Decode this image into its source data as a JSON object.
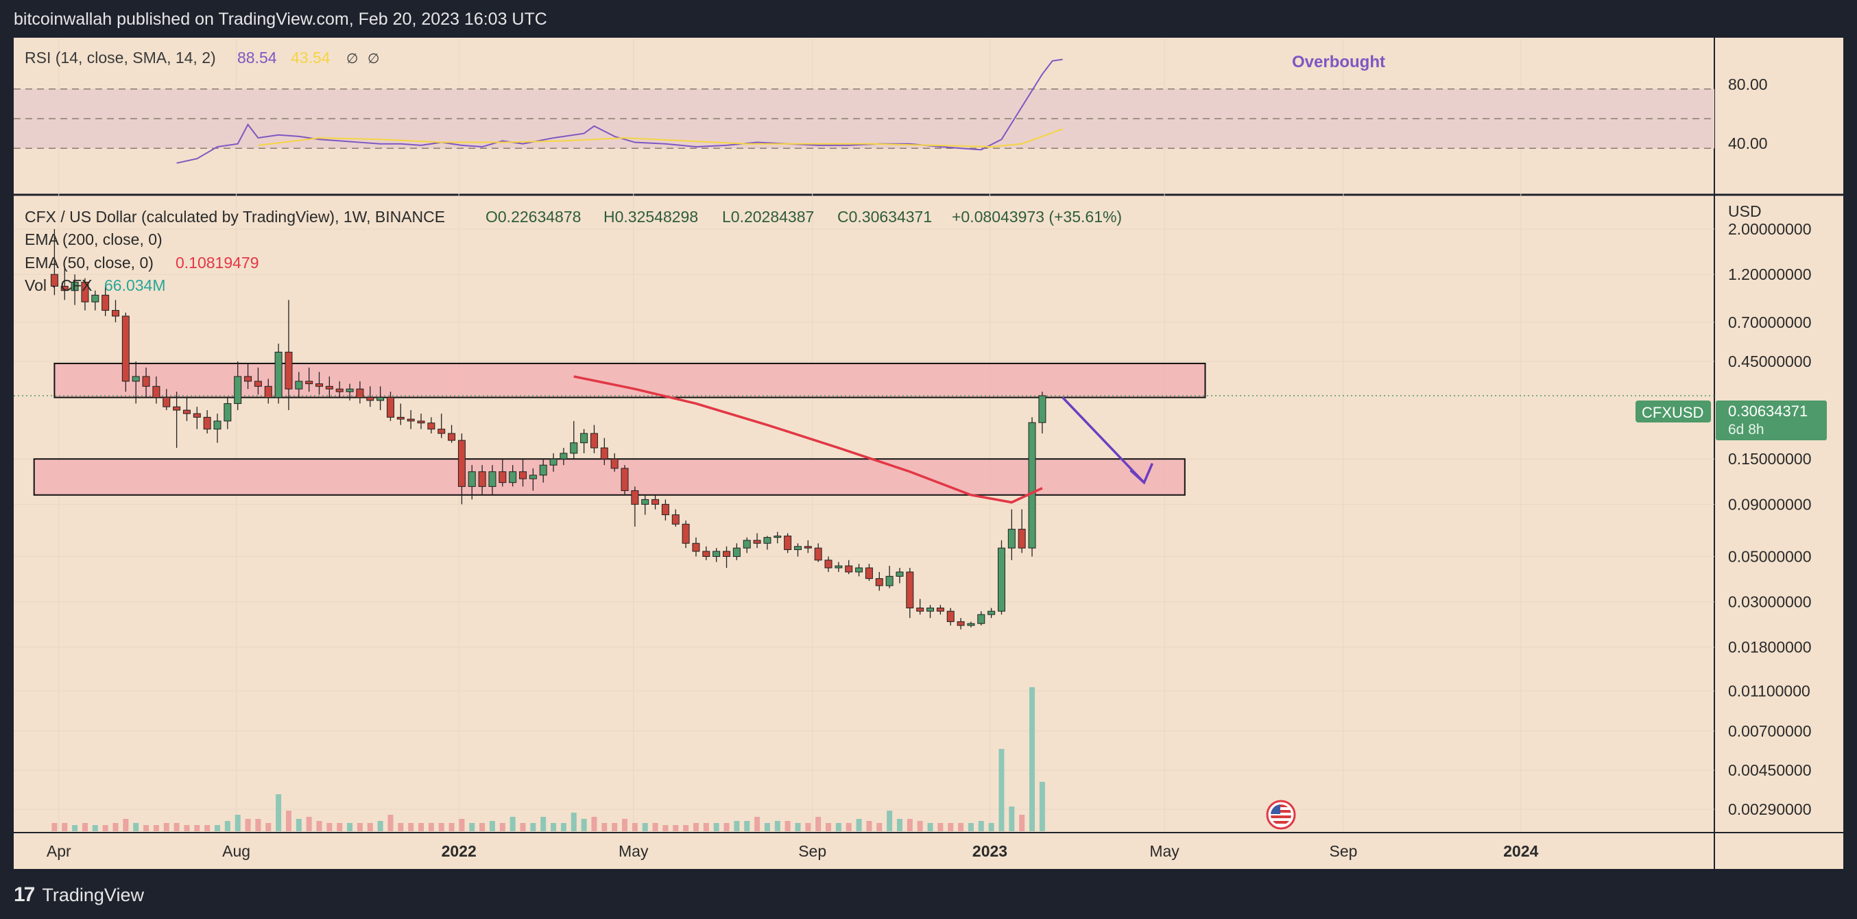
{
  "header": {
    "published": "bitcoinwallah published on TradingView.com, Feb 20, 2023 16:03 UTC"
  },
  "footer": {
    "brand": "TradingView",
    "logo": "tv-logo-icon"
  },
  "colors": {
    "bull": "#4e9a6a",
    "bear": "#c8463c",
    "ema50": "#e23745",
    "rsi": "#7e57c2",
    "rsi_ma": "#f5d442",
    "zone": "#f2b3b6",
    "bg": "#f3e1cd",
    "frame": "#1e222d"
  },
  "rsi_panel": {
    "legend": {
      "label": "RSI (14, close, SMA, 14, 2)",
      "rsi_value": "88.54",
      "ma_value": "43.54",
      "extra1": "∅",
      "extra2": "∅"
    },
    "scale_labels": [
      "80.00",
      "40.00"
    ],
    "annotation": "Overbought",
    "rsi_series": [
      [
        "2021-06-21",
        20
      ],
      [
        "2021-07-05",
        23
      ],
      [
        "2021-07-19",
        31
      ],
      [
        "2021-08-02",
        33
      ],
      [
        "2021-08-09",
        46
      ],
      [
        "2021-08-16",
        37
      ],
      [
        "2021-08-30",
        39
      ],
      [
        "2021-09-13",
        38
      ],
      [
        "2021-09-27",
        36
      ],
      [
        "2021-10-11",
        35
      ],
      [
        "2021-10-25",
        34
      ],
      [
        "2021-11-08",
        33
      ],
      [
        "2021-11-22",
        33
      ],
      [
        "2021-12-06",
        32
      ],
      [
        "2021-12-20",
        34
      ],
      [
        "2022-01-03",
        32
      ],
      [
        "2022-01-17",
        31
      ],
      [
        "2022-01-31",
        35
      ],
      [
        "2022-02-14",
        33
      ],
      [
        "2022-03-07",
        37
      ],
      [
        "2022-03-28",
        40
      ],
      [
        "2022-04-04",
        45
      ],
      [
        "2022-04-18",
        38
      ],
      [
        "2022-05-02",
        34
      ],
      [
        "2022-05-23",
        33
      ],
      [
        "2022-06-13",
        31
      ],
      [
        "2022-07-04",
        32
      ],
      [
        "2022-07-25",
        34
      ],
      [
        "2022-08-15",
        33
      ],
      [
        "2022-09-05",
        32
      ],
      [
        "2022-09-26",
        32
      ],
      [
        "2022-10-17",
        33
      ],
      [
        "2022-11-07",
        33
      ],
      [
        "2022-11-28",
        31
      ],
      [
        "2022-12-12",
        30
      ],
      [
        "2022-12-26",
        29
      ],
      [
        "2023-01-09",
        36
      ],
      [
        "2023-01-23",
        58
      ],
      [
        "2023-02-06",
        80
      ],
      [
        "2023-02-13",
        89
      ],
      [
        "2023-02-20",
        90
      ]
    ],
    "ma_series": [
      [
        "2021-08-16",
        32
      ],
      [
        "2021-09-27",
        37
      ],
      [
        "2021-11-08",
        36
      ],
      [
        "2021-12-20",
        34
      ],
      [
        "2022-01-31",
        34
      ],
      [
        "2022-03-14",
        35
      ],
      [
        "2022-04-25",
        37
      ],
      [
        "2022-06-06",
        35
      ],
      [
        "2022-07-18",
        33
      ],
      [
        "2022-08-29",
        33
      ],
      [
        "2022-10-10",
        33
      ],
      [
        "2022-11-21",
        32
      ],
      [
        "2023-01-02",
        31
      ],
      [
        "2023-01-23",
        33
      ],
      [
        "2023-02-06",
        38
      ],
      [
        "2023-02-20",
        43
      ]
    ]
  },
  "price_panel": {
    "legend": {
      "symbol": "CFX / US Dollar (calculated by TradingView), 1W, BINANCE",
      "open": "O0.22634878",
      "high": "H0.32548298",
      "low": "L0.20284387",
      "close": "C0.30634371",
      "change": "+0.08043973 (+35.61%)",
      "ema200": "EMA (200, close, 0)",
      "ema50_label": "EMA (50, close, 0)",
      "ema50_value": "0.10819479",
      "vol_label": "Vol · CFX",
      "vol_value": "66.034M"
    },
    "currency": "USD",
    "last_price": {
      "symbol": "CFXUSD",
      "price": "0.30634371",
      "countdown": "6d 8h"
    },
    "flag_icon": "us-flag-icon"
  },
  "chart_data": {
    "type": "candlestick",
    "title": "CFX / US Dollar (calculated by TradingView), 1W, BINANCE",
    "y_scale": "log",
    "ylabel": "USD",
    "ylim": [
      0.0023,
      2.6
    ],
    "xlim": [
      "2021-03-01",
      "2024-05-13"
    ],
    "y_ticks": [
      2.0,
      1.2,
      0.7,
      0.45,
      0.15,
      0.09,
      0.05,
      0.03,
      0.018,
      0.011,
      0.007,
      0.0045,
      0.0029
    ],
    "y_tick_labels": [
      "2.00000000",
      "1.20000000",
      "0.70000000",
      "0.45000000",
      "0.15000000",
      "0.09000000",
      "0.05000000",
      "0.03000000",
      "0.01800000",
      "0.01100000",
      "0.00700000",
      "0.00450000",
      "0.00290000"
    ],
    "x_ticks": [
      {
        "date": "2021-04-01",
        "label": "Apr",
        "bold": false
      },
      {
        "date": "2021-08-01",
        "label": "Aug",
        "bold": false
      },
      {
        "date": "2022-01-01",
        "label": "2022",
        "bold": true
      },
      {
        "date": "2022-05-01",
        "label": "May",
        "bold": false
      },
      {
        "date": "2022-09-01",
        "label": "Sep",
        "bold": false
      },
      {
        "date": "2023-01-01",
        "label": "2023",
        "bold": true
      },
      {
        "date": "2023-05-01",
        "label": "May",
        "bold": false
      },
      {
        "date": "2023-09-01",
        "label": "Sep",
        "bold": false
      },
      {
        "date": "2024-01-01",
        "label": "2024",
        "bold": true
      }
    ],
    "series_columns": [
      "week",
      "open",
      "high",
      "low",
      "close",
      "volume"
    ],
    "candles": [
      [
        "2021-03-29",
        1.2,
        2.0,
        0.95,
        1.05,
        2
      ],
      [
        "2021-04-05",
        1.05,
        1.3,
        0.9,
        1.0,
        2
      ],
      [
        "2021-04-12",
        1.0,
        1.2,
        0.85,
        1.1,
        1.5
      ],
      [
        "2021-04-19",
        1.1,
        1.15,
        0.8,
        0.88,
        2
      ],
      [
        "2021-04-26",
        0.88,
        1.0,
        0.8,
        0.95,
        1.5
      ],
      [
        "2021-05-03",
        0.95,
        1.05,
        0.75,
        0.8,
        1.5
      ],
      [
        "2021-05-10",
        0.8,
        0.9,
        0.7,
        0.75,
        2
      ],
      [
        "2021-05-17",
        0.75,
        0.78,
        0.32,
        0.36,
        3
      ],
      [
        "2021-05-24",
        0.36,
        0.45,
        0.28,
        0.38,
        2
      ],
      [
        "2021-05-31",
        0.38,
        0.42,
        0.3,
        0.34,
        1.5
      ],
      [
        "2021-06-07",
        0.34,
        0.38,
        0.28,
        0.3,
        1.5
      ],
      [
        "2021-06-14",
        0.3,
        0.33,
        0.26,
        0.27,
        2
      ],
      [
        "2021-06-21",
        0.27,
        0.32,
        0.17,
        0.26,
        2
      ],
      [
        "2021-06-28",
        0.26,
        0.3,
        0.23,
        0.25,
        1.5
      ],
      [
        "2021-07-05",
        0.25,
        0.27,
        0.21,
        0.24,
        1.5
      ],
      [
        "2021-07-12",
        0.24,
        0.26,
        0.2,
        0.21,
        1.5
      ],
      [
        "2021-07-19",
        0.21,
        0.25,
        0.18,
        0.23,
        1.5
      ],
      [
        "2021-07-26",
        0.23,
        0.3,
        0.21,
        0.28,
        2.5
      ],
      [
        "2021-08-02",
        0.28,
        0.45,
        0.26,
        0.38,
        4
      ],
      [
        "2021-08-09",
        0.38,
        0.44,
        0.33,
        0.36,
        3
      ],
      [
        "2021-08-16",
        0.36,
        0.42,
        0.31,
        0.34,
        3
      ],
      [
        "2021-08-23",
        0.34,
        0.37,
        0.28,
        0.3,
        2
      ],
      [
        "2021-08-30",
        0.3,
        0.55,
        0.28,
        0.5,
        9
      ],
      [
        "2021-09-06",
        0.5,
        0.9,
        0.26,
        0.33,
        5
      ],
      [
        "2021-09-13",
        0.33,
        0.4,
        0.3,
        0.36,
        3
      ],
      [
        "2021-09-20",
        0.36,
        0.42,
        0.32,
        0.35,
        3.5
      ],
      [
        "2021-09-27",
        0.35,
        0.4,
        0.31,
        0.34,
        2.5
      ],
      [
        "2021-10-04",
        0.34,
        0.38,
        0.3,
        0.33,
        2
      ],
      [
        "2021-10-11",
        0.33,
        0.36,
        0.3,
        0.32,
        2
      ],
      [
        "2021-10-18",
        0.32,
        0.35,
        0.29,
        0.33,
        2
      ],
      [
        "2021-10-25",
        0.33,
        0.36,
        0.28,
        0.3,
        2
      ],
      [
        "2021-11-01",
        0.3,
        0.34,
        0.27,
        0.29,
        2
      ],
      [
        "2021-11-08",
        0.29,
        0.34,
        0.26,
        0.3,
        2.5
      ],
      [
        "2021-11-15",
        0.3,
        0.32,
        0.23,
        0.24,
        4
      ],
      [
        "2021-11-22",
        0.24,
        0.28,
        0.22,
        0.235,
        2
      ],
      [
        "2021-11-29",
        0.235,
        0.26,
        0.21,
        0.23,
        2
      ],
      [
        "2021-12-06",
        0.23,
        0.25,
        0.21,
        0.225,
        2
      ],
      [
        "2021-12-13",
        0.225,
        0.24,
        0.2,
        0.21,
        2
      ],
      [
        "2021-12-20",
        0.21,
        0.25,
        0.19,
        0.2,
        2
      ],
      [
        "2021-12-27",
        0.2,
        0.22,
        0.18,
        0.185,
        2
      ],
      [
        "2022-01-03",
        0.185,
        0.2,
        0.09,
        0.11,
        3
      ],
      [
        "2022-01-10",
        0.11,
        0.14,
        0.095,
        0.13,
        2
      ],
      [
        "2022-01-17",
        0.13,
        0.14,
        0.1,
        0.11,
        2
      ],
      [
        "2022-01-24",
        0.11,
        0.14,
        0.1,
        0.13,
        2.5
      ],
      [
        "2022-01-31",
        0.13,
        0.15,
        0.11,
        0.115,
        2
      ],
      [
        "2022-02-07",
        0.115,
        0.14,
        0.11,
        0.13,
        3.5
      ],
      [
        "2022-02-14",
        0.13,
        0.15,
        0.11,
        0.12,
        2
      ],
      [
        "2022-02-21",
        0.12,
        0.135,
        0.105,
        0.125,
        2
      ],
      [
        "2022-02-28",
        0.125,
        0.15,
        0.115,
        0.14,
        3.5
      ],
      [
        "2022-03-07",
        0.14,
        0.16,
        0.13,
        0.15,
        2
      ],
      [
        "2022-03-14",
        0.15,
        0.17,
        0.14,
        0.16,
        2
      ],
      [
        "2022-03-21",
        0.16,
        0.23,
        0.15,
        0.18,
        4.5
      ],
      [
        "2022-03-28",
        0.18,
        0.21,
        0.16,
        0.2,
        3
      ],
      [
        "2022-04-04",
        0.2,
        0.22,
        0.16,
        0.17,
        3.5
      ],
      [
        "2022-04-11",
        0.17,
        0.19,
        0.14,
        0.15,
        2
      ],
      [
        "2022-04-18",
        0.15,
        0.16,
        0.13,
        0.135,
        2
      ],
      [
        "2022-04-25",
        0.135,
        0.14,
        0.1,
        0.105,
        3
      ],
      [
        "2022-05-02",
        0.105,
        0.11,
        0.07,
        0.09,
        2
      ],
      [
        "2022-05-09",
        0.09,
        0.1,
        0.08,
        0.095,
        2
      ],
      [
        "2022-05-16",
        0.095,
        0.1,
        0.085,
        0.09,
        2
      ],
      [
        "2022-05-23",
        0.09,
        0.095,
        0.075,
        0.08,
        1.5
      ],
      [
        "2022-05-30",
        0.08,
        0.085,
        0.07,
        0.072,
        1.5
      ],
      [
        "2022-06-06",
        0.072,
        0.075,
        0.055,
        0.058,
        1.5
      ],
      [
        "2022-06-13",
        0.058,
        0.062,
        0.05,
        0.053,
        2
      ],
      [
        "2022-06-20",
        0.053,
        0.056,
        0.048,
        0.05,
        2
      ],
      [
        "2022-06-27",
        0.05,
        0.055,
        0.047,
        0.053,
        2
      ],
      [
        "2022-07-04",
        0.053,
        0.056,
        0.044,
        0.05,
        2
      ],
      [
        "2022-07-11",
        0.05,
        0.058,
        0.048,
        0.055,
        2.5
      ],
      [
        "2022-07-18",
        0.055,
        0.062,
        0.052,
        0.06,
        2.5
      ],
      [
        "2022-07-25",
        0.06,
        0.065,
        0.055,
        0.058,
        3.5
      ],
      [
        "2022-08-01",
        0.058,
        0.063,
        0.054,
        0.062,
        2
      ],
      [
        "2022-08-08",
        0.062,
        0.066,
        0.058,
        0.063,
        2.5
      ],
      [
        "2022-08-15",
        0.063,
        0.065,
        0.052,
        0.054,
        2.5
      ],
      [
        "2022-08-22",
        0.054,
        0.058,
        0.05,
        0.056,
        2
      ],
      [
        "2022-08-29",
        0.056,
        0.06,
        0.052,
        0.055,
        2
      ],
      [
        "2022-09-05",
        0.055,
        0.058,
        0.047,
        0.048,
        3.5
      ],
      [
        "2022-09-12",
        0.048,
        0.05,
        0.042,
        0.044,
        2
      ],
      [
        "2022-09-19",
        0.044,
        0.047,
        0.042,
        0.045,
        2
      ],
      [
        "2022-09-26",
        0.045,
        0.048,
        0.041,
        0.042,
        2
      ],
      [
        "2022-10-03",
        0.042,
        0.046,
        0.04,
        0.044,
        3
      ],
      [
        "2022-10-10",
        0.044,
        0.046,
        0.038,
        0.039,
        2.5
      ],
      [
        "2022-10-17",
        0.039,
        0.042,
        0.034,
        0.036,
        2
      ],
      [
        "2022-10-24",
        0.036,
        0.045,
        0.035,
        0.04,
        5
      ],
      [
        "2022-10-31",
        0.04,
        0.044,
        0.037,
        0.042,
        3
      ],
      [
        "2022-11-07",
        0.042,
        0.044,
        0.025,
        0.028,
        3
      ],
      [
        "2022-11-14",
        0.028,
        0.031,
        0.026,
        0.027,
        2.5
      ],
      [
        "2022-11-21",
        0.027,
        0.029,
        0.025,
        0.028,
        2
      ],
      [
        "2022-11-28",
        0.028,
        0.029,
        0.026,
        0.027,
        2
      ],
      [
        "2022-12-05",
        0.027,
        0.028,
        0.023,
        0.024,
        2
      ],
      [
        "2022-12-12",
        0.024,
        0.025,
        0.022,
        0.023,
        2
      ],
      [
        "2022-12-19",
        0.023,
        0.024,
        0.0225,
        0.0235,
        2
      ],
      [
        "2022-12-26",
        0.0235,
        0.027,
        0.023,
        0.026,
        2.5
      ],
      [
        "2023-01-02",
        0.026,
        0.028,
        0.025,
        0.027,
        2
      ],
      [
        "2023-01-09",
        0.027,
        0.06,
        0.026,
        0.055,
        20
      ],
      [
        "2023-01-16",
        0.055,
        0.085,
        0.048,
        0.068,
        6
      ],
      [
        "2023-01-23",
        0.068,
        0.085,
        0.052,
        0.055,
        4
      ],
      [
        "2023-01-30",
        0.055,
        0.24,
        0.05,
        0.226,
        35
      ],
      [
        "2023-02-06",
        0.226,
        0.32,
        0.2,
        0.306,
        12
      ]
    ],
    "ema50": [
      [
        "2022-03-21",
        0.38
      ],
      [
        "2022-05-02",
        0.33
      ],
      [
        "2022-06-13",
        0.28
      ],
      [
        "2022-08-01",
        0.22
      ],
      [
        "2022-09-19",
        0.17
      ],
      [
        "2022-11-07",
        0.13
      ],
      [
        "2022-12-19",
        0.1
      ],
      [
        "2023-01-16",
        0.092
      ],
      [
        "2023-02-06",
        0.108
      ]
    ],
    "zones": [
      {
        "from": "2021-03-29",
        "to": "2023-05-29",
        "low": 0.3,
        "high": 0.44
      },
      {
        "from": "2021-03-15",
        "to": "2023-05-15",
        "low": 0.1,
        "high": 0.15
      }
    ],
    "arrow": [
      [
        "2023-02-20",
        0.3
      ],
      [
        "2023-04-17",
        0.115
      ]
    ],
    "volume_max": 40
  }
}
